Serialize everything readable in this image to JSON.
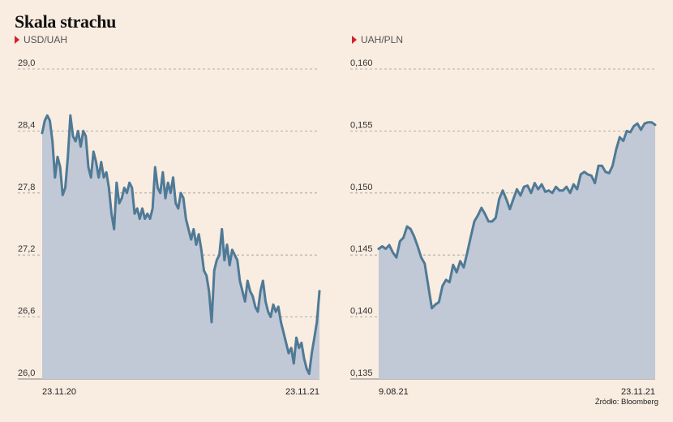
{
  "title": "Skala strachu",
  "source": "Źródło: Bloomberg",
  "colors": {
    "background": "#f9ece0",
    "line": "#4f7a96",
    "area": "#c1c8d6",
    "marker": "#d4202a",
    "grid": "#9a9a9a"
  },
  "chart_data": [
    {
      "type": "area",
      "label": "USD/UAH",
      "ylim": [
        26.0,
        29.0
      ],
      "yticks": [
        26.0,
        26.6,
        27.2,
        27.8,
        28.4,
        29.0
      ],
      "ytick_labels": [
        "26,0",
        "26,6",
        "27,2",
        "27,8",
        "28,4",
        "29,0"
      ],
      "xtick_labels": [
        "23.11.20",
        "23.11.21"
      ],
      "grid": true,
      "values": [
        28.38,
        28.5,
        28.55,
        28.5,
        28.3,
        27.95,
        28.15,
        28.05,
        27.78,
        27.85,
        28.15,
        28.55,
        28.35,
        28.3,
        28.4,
        28.25,
        28.4,
        28.35,
        28.05,
        27.95,
        28.2,
        28.1,
        27.95,
        28.1,
        27.95,
        28.0,
        27.85,
        27.6,
        27.45,
        27.9,
        27.7,
        27.75,
        27.85,
        27.8,
        27.9,
        27.85,
        27.6,
        27.65,
        27.55,
        27.65,
        27.55,
        27.6,
        27.55,
        27.65,
        28.05,
        27.85,
        27.8,
        28.0,
        27.75,
        27.9,
        27.8,
        27.95,
        27.7,
        27.65,
        27.8,
        27.75,
        27.55,
        27.45,
        27.35,
        27.45,
        27.3,
        27.4,
        27.25,
        27.05,
        27.0,
        26.85,
        26.55,
        27.05,
        27.15,
        27.2,
        27.45,
        27.15,
        27.3,
        27.1,
        27.25,
        27.2,
        27.15,
        26.95,
        26.85,
        26.75,
        26.95,
        26.85,
        26.8,
        26.7,
        26.65,
        26.85,
        26.95,
        26.75,
        26.65,
        26.6,
        26.72,
        26.65,
        26.7,
        26.55,
        26.45,
        26.35,
        26.25,
        26.3,
        26.15,
        26.4,
        26.3,
        26.35,
        26.2,
        26.1,
        26.05,
        26.25,
        26.4,
        26.55,
        26.85
      ]
    },
    {
      "type": "area",
      "label": "UAH/PLN",
      "ylim": [
        0.135,
        0.16
      ],
      "yticks": [
        0.135,
        0.14,
        0.145,
        0.15,
        0.155,
        0.16
      ],
      "ytick_labels": [
        "0,135",
        "0,140",
        "0,145",
        "0,150",
        "0,155",
        "0,160"
      ],
      "xtick_labels": [
        "9.08.21",
        "23.11.21"
      ],
      "grid": true,
      "values": [
        0.1455,
        0.1457,
        0.1455,
        0.1458,
        0.1452,
        0.1448,
        0.1461,
        0.1464,
        0.1473,
        0.1471,
        0.1465,
        0.1457,
        0.1448,
        0.1443,
        0.1425,
        0.1407,
        0.141,
        0.1412,
        0.1425,
        0.143,
        0.1428,
        0.1442,
        0.1436,
        0.1445,
        0.144,
        0.1452,
        0.1465,
        0.1477,
        0.1482,
        0.1488,
        0.1483,
        0.1477,
        0.1477,
        0.148,
        0.1495,
        0.1502,
        0.1495,
        0.1487,
        0.1495,
        0.1503,
        0.1498,
        0.1505,
        0.1506,
        0.15,
        0.1508,
        0.1503,
        0.1507,
        0.1501,
        0.1502,
        0.15,
        0.1505,
        0.1502,
        0.1502,
        0.1505,
        0.15,
        0.1507,
        0.1503,
        0.1515,
        0.1517,
        0.1515,
        0.1514,
        0.1508,
        0.1522,
        0.1522,
        0.1517,
        0.1516,
        0.1522,
        0.1535,
        0.1545,
        0.1542,
        0.155,
        0.1549,
        0.1554,
        0.1556,
        0.1551,
        0.1556,
        0.1557,
        0.1557,
        0.1555
      ]
    }
  ]
}
